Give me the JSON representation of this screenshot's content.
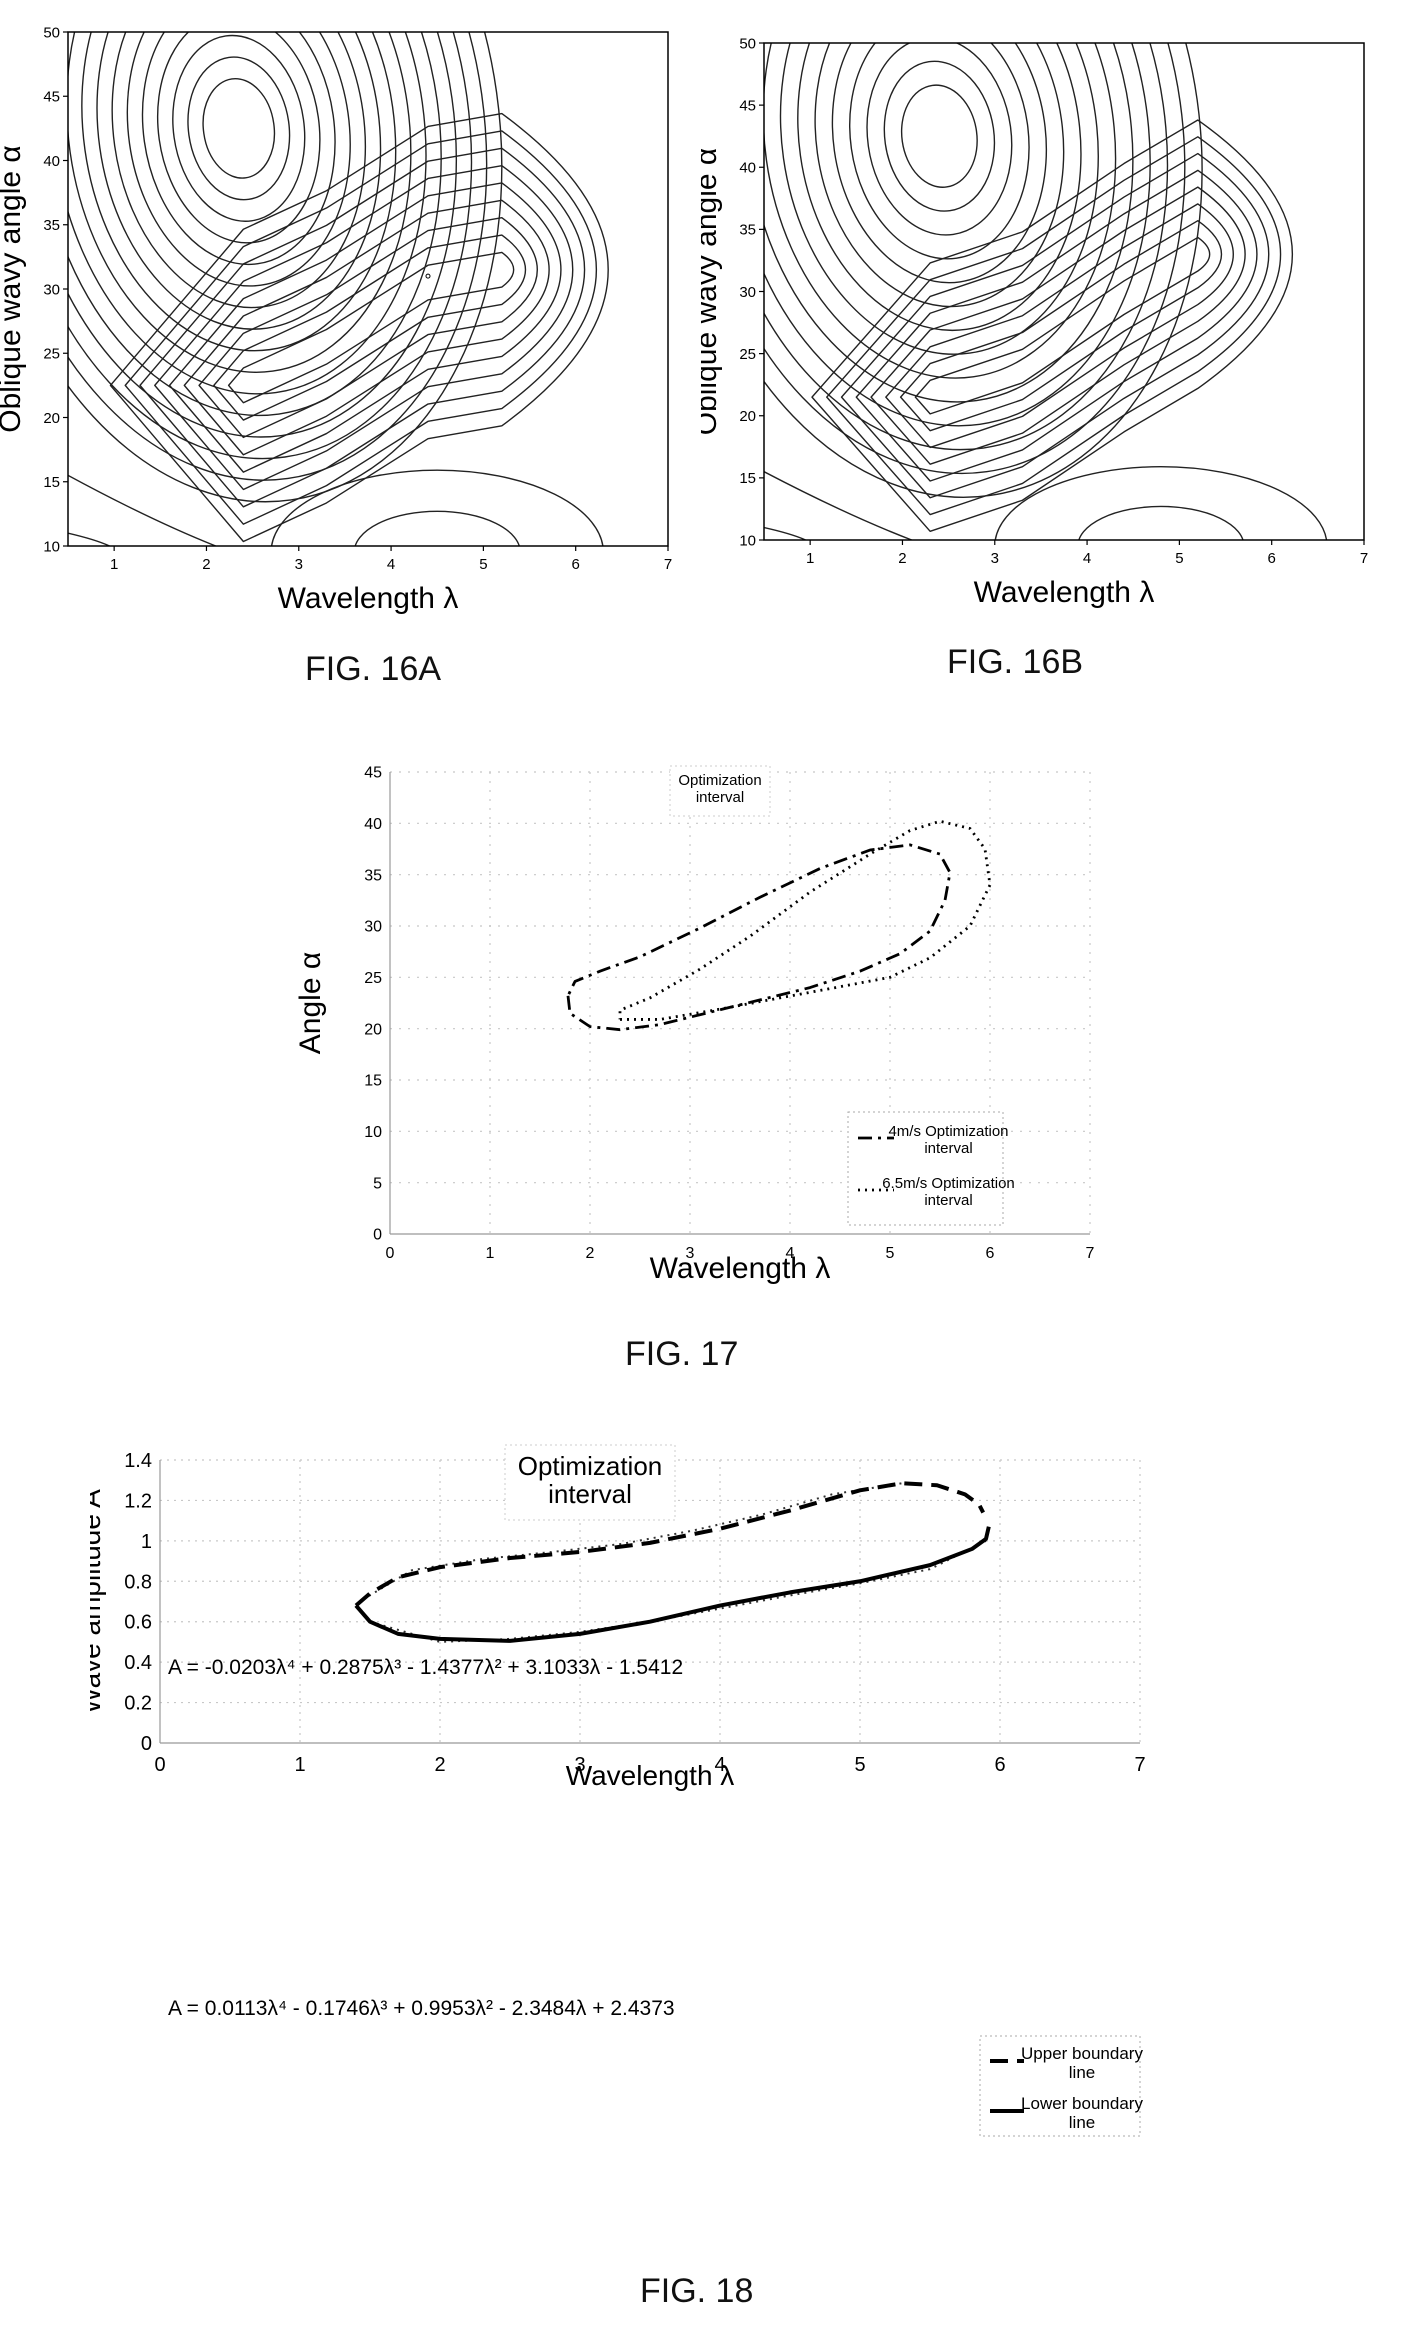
{
  "page": {
    "background": "#ffffff"
  },
  "figures": {
    "fig16a": {
      "caption": "FIG. 16A"
    },
    "fig16b": {
      "caption": "FIG. 16B"
    },
    "fig17": {
      "caption": "FIG. 17"
    },
    "fig18": {
      "caption": "FIG. 18"
    }
  },
  "chart_data": [
    {
      "id": "fig16a",
      "type": "contour",
      "title": "",
      "xlabel": "Wavelength λ",
      "ylabel": "Oblique wavy angle α",
      "xlim": [
        0.5,
        7
      ],
      "ylim": [
        10,
        50
      ],
      "xticks": [
        1,
        2,
        3,
        4,
        5,
        6,
        7
      ],
      "yticks": [
        10,
        15,
        20,
        25,
        30,
        35,
        40,
        45,
        50
      ],
      "features": {
        "peak": {
          "x": 2.35,
          "y": 42.5
        },
        "valley_ridge": [
          [
            2.4,
            22.5
          ],
          [
            3.3,
            25.5
          ],
          [
            4.4,
            30.5
          ],
          [
            5.2,
            31.5
          ]
        ],
        "bottom_right_bowl_center": {
          "x": 4.5,
          "y": 9.5
        },
        "annotation_mark": {
          "x": 4.4,
          "y": 31
        }
      },
      "level_count": 16,
      "line_color": "#222222"
    },
    {
      "id": "fig16b",
      "type": "contour",
      "title": "",
      "xlabel": "Wavelength λ",
      "ylabel": "Oblique wavy angle α",
      "xlim": [
        0.5,
        7
      ],
      "ylim": [
        10,
        50
      ],
      "xticks": [
        1,
        2,
        3,
        4,
        5,
        6,
        7
      ],
      "yticks": [
        10,
        15,
        20,
        25,
        30,
        35,
        40,
        45,
        50
      ],
      "features": {
        "peak": {
          "x": 2.4,
          "y": 42.5
        },
        "valley_ridge": [
          [
            2.3,
            21.5
          ],
          [
            3.3,
            24
          ],
          [
            4.4,
            29.5
          ],
          [
            5.2,
            33
          ]
        ],
        "bottom_right_bowl_center": {
          "x": 4.8,
          "y": 9.5
        }
      },
      "level_count": 14,
      "line_color": "#222222"
    },
    {
      "id": "fig17",
      "type": "line",
      "title": "Optimization interval",
      "xlabel": "Wavelength λ",
      "ylabel": "Angle α",
      "xlim": [
        0,
        7
      ],
      "ylim": [
        0,
        45
      ],
      "xticks": [
        0,
        1,
        2,
        3,
        4,
        5,
        6,
        7
      ],
      "yticks": [
        0,
        5,
        10,
        15,
        20,
        25,
        30,
        35,
        40,
        45
      ],
      "grid": true,
      "legend": "bottom-right",
      "series": [
        {
          "name": "4m/s Optimization interval",
          "dash": "dashdot",
          "points": [
            [
              1.78,
              23.2
            ],
            [
              1.8,
              21.5
            ],
            [
              2.0,
              20.2
            ],
            [
              2.3,
              19.9
            ],
            [
              2.7,
              20.4
            ],
            [
              3.2,
              21.6
            ],
            [
              3.7,
              22.8
            ],
            [
              4.2,
              24.0
            ],
            [
              4.7,
              25.6
            ],
            [
              5.1,
              27.3
            ],
            [
              5.4,
              29.5
            ],
            [
              5.55,
              32.5
            ],
            [
              5.6,
              35.2
            ],
            [
              5.5,
              37.0
            ],
            [
              5.2,
              37.9
            ],
            [
              4.8,
              37.4
            ],
            [
              4.3,
              35.6
            ],
            [
              3.7,
              32.8
            ],
            [
              3.1,
              29.8
            ],
            [
              2.5,
              27.0
            ],
            [
              2.1,
              25.6
            ],
            [
              1.85,
              24.6
            ],
            [
              1.78,
              23.2
            ]
          ]
        },
        {
          "name": "6.5m/s Optimization interval",
          "dash": "dotted",
          "points": [
            [
              2.3,
              20.9
            ],
            [
              2.7,
              20.9
            ],
            [
              3.3,
              21.9
            ],
            [
              3.9,
              23.0
            ],
            [
              4.4,
              23.9
            ],
            [
              5.0,
              25.0
            ],
            [
              5.4,
              26.9
            ],
            [
              5.8,
              30.0
            ],
            [
              6.0,
              34.0
            ],
            [
              5.95,
              37.5
            ],
            [
              5.8,
              39.5
            ],
            [
              5.5,
              40.2
            ],
            [
              5.2,
              39.3
            ],
            [
              4.8,
              37.0
            ],
            [
              4.2,
              33.3
            ],
            [
              3.6,
              29.0
            ],
            [
              3.1,
              25.8
            ],
            [
              2.6,
              23.0
            ],
            [
              2.3,
              21.8
            ],
            [
              2.3,
              20.9
            ]
          ]
        }
      ]
    },
    {
      "id": "fig18",
      "type": "line",
      "title": "Optimization interval",
      "xlabel": "Wavelength λ",
      "ylabel": "Wave amplitude A",
      "xlim": [
        0,
        7
      ],
      "ylim": [
        0,
        1.4
      ],
      "xticks": [
        0,
        1,
        2,
        3,
        4,
        5,
        6,
        7
      ],
      "yticks": [
        0,
        0.2,
        0.4,
        0.6,
        0.8,
        1,
        1.2,
        1.4
      ],
      "grid": true,
      "legend": "bottom-right",
      "annotations": [
        "A = -0.0203λ⁴ + 0.2875λ³ - 1.4377λ² + 3.1033λ - 1.5412",
        "A = 0.0113λ⁴ - 0.1746λ³ + 0.9953λ² - 2.3484λ + 2.4373"
      ],
      "series": [
        {
          "name": "Upper boundary line",
          "dash": "dashed",
          "points": [
            [
              1.4,
              0.68
            ],
            [
              1.5,
              0.74
            ],
            [
              1.7,
              0.82
            ],
            [
              2.0,
              0.87
            ],
            [
              2.5,
              0.915
            ],
            [
              3.0,
              0.945
            ],
            [
              3.5,
              0.99
            ],
            [
              4.0,
              1.06
            ],
            [
              4.5,
              1.15
            ],
            [
              5.0,
              1.25
            ],
            [
              5.3,
              1.285
            ],
            [
              5.55,
              1.275
            ],
            [
              5.75,
              1.23
            ],
            [
              5.85,
              1.18
            ],
            [
              5.88,
              1.14
            ]
          ]
        },
        {
          "name": "Lower boundary line",
          "dash": "solid",
          "points": [
            [
              1.4,
              0.68
            ],
            [
              1.5,
              0.6
            ],
            [
              1.7,
              0.54
            ],
            [
              2.0,
              0.515
            ],
            [
              2.5,
              0.505
            ],
            [
              3.0,
              0.54
            ],
            [
              3.5,
              0.6
            ],
            [
              4.0,
              0.68
            ],
            [
              4.5,
              0.745
            ],
            [
              5.0,
              0.8
            ],
            [
              5.5,
              0.88
            ],
            [
              5.8,
              0.96
            ],
            [
              5.9,
              1.01
            ],
            [
              5.92,
              1.07
            ]
          ]
        }
      ],
      "fit_series": [
        {
          "dash": "dotted",
          "points": [
            [
              1.45,
              0.71
            ],
            [
              1.8,
              0.855
            ],
            [
              2.3,
              0.91
            ],
            [
              2.8,
              0.945
            ],
            [
              3.3,
              0.985
            ],
            [
              3.8,
              1.05
            ],
            [
              4.3,
              1.13
            ],
            [
              4.8,
              1.23
            ],
            [
              5.3,
              1.285
            ]
          ]
        },
        {
          "dash": "dotted",
          "points": [
            [
              1.5,
              0.6
            ],
            [
              2.0,
              0.5
            ],
            [
              2.5,
              0.515
            ],
            [
              3.0,
              0.55
            ],
            [
              3.5,
              0.6
            ],
            [
              4.0,
              0.665
            ],
            [
              4.5,
              0.73
            ],
            [
              5.0,
              0.79
            ],
            [
              5.5,
              0.86
            ],
            [
              5.9,
              1.0
            ]
          ]
        }
      ]
    }
  ]
}
